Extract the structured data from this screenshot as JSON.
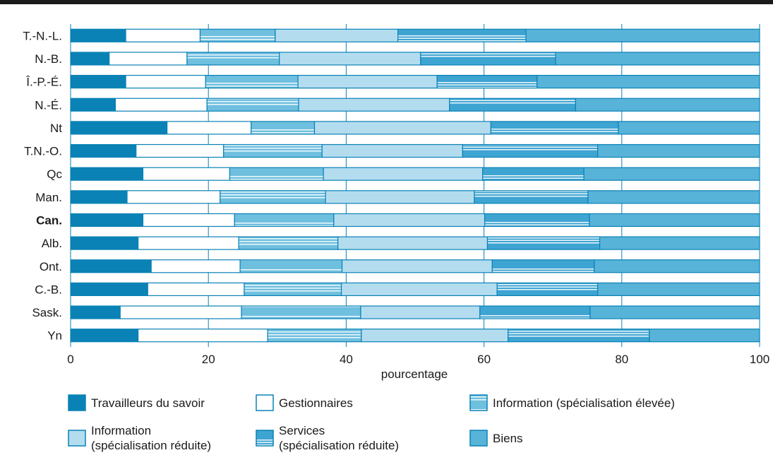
{
  "chart_data": {
    "type": "bar",
    "orientation": "horizontal",
    "stacked": true,
    "title": "",
    "xlabel": "pourcentage",
    "ylabel": "",
    "xlim": [
      0,
      100
    ],
    "xticks": [
      0,
      20,
      40,
      60,
      80,
      100
    ],
    "grid": true,
    "legend_position": "bottom",
    "categories": [
      "T.-N.-L.",
      "N.-B.",
      "Î.-P.-É.",
      "N.-É.",
      "Nt",
      "T.N.-O.",
      "Qc",
      "Man.",
      "Can.",
      "Alb.",
      "Ont.",
      "C.-B.",
      "Sask.",
      "Yn"
    ],
    "bold_categories": [
      "Can."
    ],
    "series": [
      {
        "name": "Travailleurs du savoir",
        "color": "#0a82b5",
        "pattern": "solid",
        "values": [
          8,
          5.6,
          8,
          6.5,
          14,
          9.5,
          10.5,
          8.2,
          10.5,
          9.8,
          11.7,
          11.2,
          7.2,
          9.8
        ]
      },
      {
        "name": "Gestionnaires",
        "color": "#ffffff",
        "pattern": "hollow",
        "values": [
          10.8,
          11.3,
          11.6,
          13.3,
          12.2,
          12.7,
          12.6,
          13.5,
          13.3,
          14.6,
          12.9,
          14,
          17.6,
          18.8
        ]
      },
      {
        "name": "Information (spécialisation élevée)",
        "color": "#6fbfdf",
        "pattern": "stripe",
        "values": [
          10.9,
          13.4,
          13.4,
          13.3,
          9.2,
          14.3,
          13.6,
          15.3,
          14.4,
          14.4,
          14.8,
          14.1,
          17.3,
          13.6
        ]
      },
      {
        "name": "Information (spécialisation réduite)",
        "color": "#b4dcef",
        "pattern": "solid",
        "values": [
          17.8,
          20.5,
          20.2,
          21.9,
          25.6,
          20.4,
          23.1,
          21.6,
          21.9,
          21.7,
          21.8,
          22.6,
          17.3,
          21.3
        ]
      },
      {
        "name": "Services (spécialisation réduite)",
        "color": "#3ea4d2",
        "pattern": "stripe",
        "values": [
          18.6,
          19.6,
          14.5,
          18.3,
          18.5,
          19.6,
          14.7,
          16.5,
          15.2,
          16.3,
          14.8,
          14.6,
          16,
          20.5
        ]
      },
      {
        "name": "Biens",
        "color": "#58b3d9",
        "pattern": "solid",
        "values": [
          33.9,
          29.6,
          32.3,
          26.7,
          20.5,
          23.5,
          25.5,
          24.9,
          24.7,
          23.2,
          24,
          23.5,
          24.6,
          16
        ]
      }
    ]
  }
}
